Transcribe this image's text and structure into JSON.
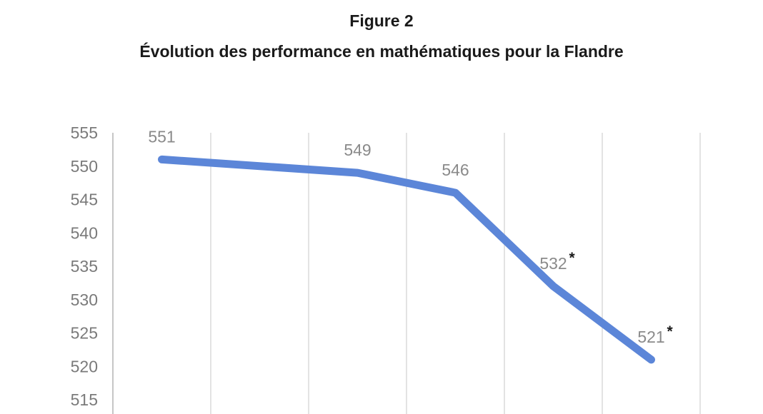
{
  "figure": {
    "title": "Figure 2",
    "subtitle": "Évolution des performance en mathématiques pour la Flandre"
  },
  "chart_data": {
    "type": "line",
    "title": "Figure 2",
    "subtitle": "Évolution des performance en mathématiques pour la Flandre",
    "series": [
      {
        "name": "Flandre",
        "points": [
          {
            "value": 551,
            "label": "551",
            "significant": false,
            "slot": 0
          },
          {
            "value": 549,
            "label": "549",
            "significant": false,
            "slot": 2
          },
          {
            "value": 546,
            "label": "546",
            "significant": false,
            "slot": 3
          },
          {
            "value": 532,
            "label": "532*",
            "significant": true,
            "slot": 4
          },
          {
            "value": 521,
            "label": "521*",
            "significant": true,
            "slot": 5
          }
        ]
      }
    ],
    "y_axis": {
      "ticks": [
        555,
        550,
        545,
        540,
        535,
        530,
        525,
        520,
        515
      ],
      "max_visible": 555,
      "min_visible": 515,
      "tick_step": 5
    },
    "x_axis": {
      "labels_visible": false,
      "slot_count": 7
    },
    "grid": "vertical-only",
    "legend": "none",
    "colors": {
      "line": "#5c86d8",
      "gridline": "#dadada",
      "axis_line": "#c6c6c6",
      "tick_label": "#7a7a7a",
      "data_label": "#8a8a8a",
      "asterisk": "#1a1a1a",
      "title": "#1a1a1a"
    }
  }
}
